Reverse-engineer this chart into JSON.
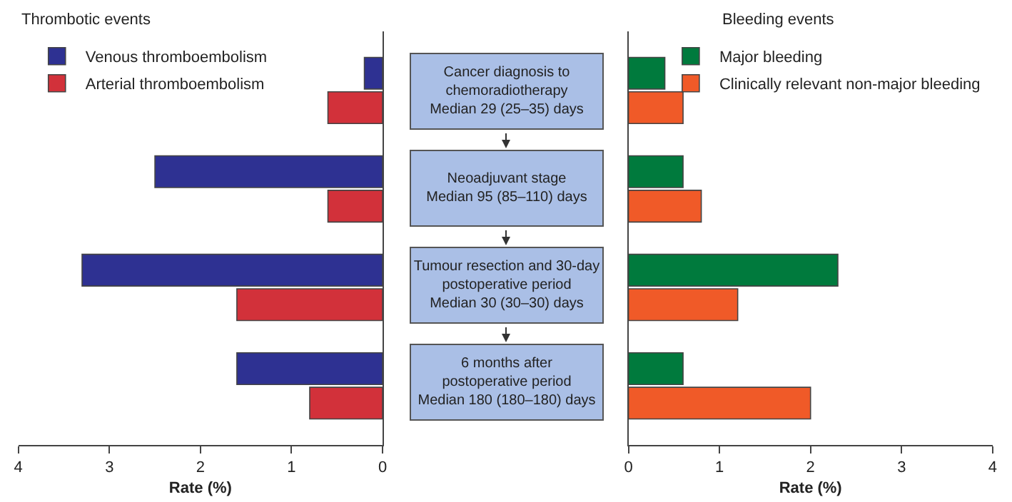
{
  "chart_data": [
    {
      "type": "bar",
      "orientation": "horizontal",
      "title": "Thrombotic events",
      "xlabel": "Rate (%)",
      "categories": [
        null,
        null,
        null,
        null
      ],
      "series": [
        {
          "name": "Venous thromboembolism",
          "color": "#2e3192",
          "values": [
            0.2,
            2.5,
            3.3,
            1.6
          ]
        },
        {
          "name": "Arterial thromboembolism",
          "color": "#d2313a",
          "values": [
            0.6,
            0.6,
            1.6,
            0.8
          ]
        }
      ],
      "xlim": [
        4,
        0
      ],
      "xticks": [
        4,
        3,
        2,
        1,
        0
      ],
      "tick_labels": "x",
      "legend": "top left"
    },
    {
      "type": "other",
      "annotations": [
        "Cancer diagnosis to\nchemoradiotherapy\nMedian 29 (25–35) days",
        "Neoadjuvant stage\nMedian 95 (85–110) days",
        "Tumour resection and 30-day\npostoperative period\nMedian 30 (30–30) days",
        "6 months after\npostoperative period\nMedian 180 (180–180) days"
      ]
    },
    {
      "type": "bar",
      "orientation": "horizontal",
      "title": "Bleeding events",
      "xlabel": "Rate (%)",
      "categories": [
        null,
        null,
        null,
        null
      ],
      "series": [
        {
          "name": "Major bleeding",
          "color": "#007a3d",
          "values": [
            0.4,
            0.6,
            2.3,
            0.6
          ]
        },
        {
          "name": "Clinically relevant non-major bleeding",
          "color": "#f05a28",
          "values": [
            0.6,
            0.8,
            1.2,
            2.0
          ]
        }
      ],
      "xlim": [
        0,
        4
      ],
      "xticks": [
        0,
        1,
        2,
        3,
        4
      ],
      "tick_labels": "x",
      "legend": "top right"
    }
  ]
}
